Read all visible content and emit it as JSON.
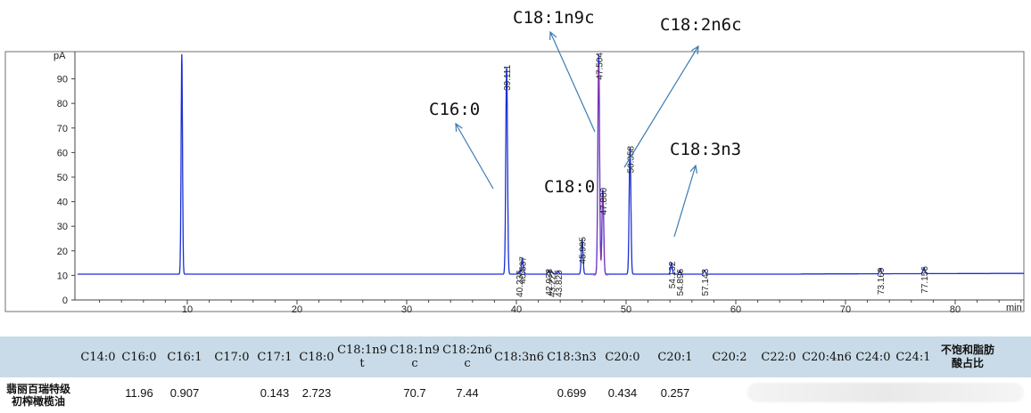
{
  "chart_data": {
    "type": "line",
    "xlabel": "min",
    "ylabel": "pA",
    "xlim": [
      0,
      87
    ],
    "ylim": [
      0,
      100
    ],
    "x_ticks": [
      10,
      20,
      30,
      40,
      50,
      60,
      70,
      80
    ],
    "y_ticks": [
      0,
      10,
      20,
      30,
      40,
      50,
      60,
      70,
      80,
      90
    ],
    "baseline": 10.5,
    "series": [
      {
        "color": "#1a2fd6",
        "peaks": [
          {
            "rt": 9.5,
            "height": 100
          },
          {
            "rt": 39.111,
            "height": 95,
            "label": "39.111"
          },
          {
            "rt": 40.236,
            "height": 11.5,
            "label": "40.236"
          },
          {
            "rt": 40.537,
            "height": 17,
            "label": "40.537"
          },
          {
            "rt": 42.938,
            "height": 12,
            "label": "42.938"
          },
          {
            "rt": 43.222,
            "height": 11.5,
            "label": "43.222"
          },
          {
            "rt": 43.82,
            "height": 11.5,
            "label": "43.820"
          },
          {
            "rt": 45.995,
            "height": 25,
            "label": "45.995"
          },
          {
            "rt": 47.504,
            "height": 100,
            "label": "47.504"
          },
          {
            "rt": 47.88,
            "height": 45,
            "label": "47.880"
          },
          {
            "rt": 50.358,
            "height": 62,
            "label": "50.358"
          },
          {
            "rt": 54.132,
            "height": 15,
            "label": "54.132"
          },
          {
            "rt": 54.896,
            "height": 12,
            "label": "54.896"
          },
          {
            "rt": 57.143,
            "height": 12,
            "label": "57.143"
          },
          {
            "rt": 73.169,
            "height": 12.5,
            "label": "73.169"
          },
          {
            "rt": 77.156,
            "height": 13,
            "label": "77.156"
          }
        ]
      }
    ],
    "annotations": [
      {
        "text": "C16:0",
        "rt": 39.111
      },
      {
        "text": "C18:1n9c",
        "rt": 47.504
      },
      {
        "text": "C18:2n6c",
        "rt": 50.358
      },
      {
        "text": "C18:0",
        "rt": 47.88
      },
      {
        "text": "C18:3n3",
        "rt": 54.132
      }
    ]
  },
  "table": {
    "headers": [
      "C14:0",
      "C16:0",
      "C16:1",
      "C17:0",
      "C17:1",
      "C18:0",
      "C18:1n9\nt",
      "C18:1n9\nc",
      "C18:2n6\nc",
      "C18:3n6",
      "C18:3n3",
      "C20:0",
      "C20:1",
      "C20:2",
      "C22:0",
      "C20:4n6",
      "C24:0",
      "C24:1",
      "不饱和脂肪\n酸占比"
    ],
    "row_label": "翡丽百瑞特级\n初榨橄榄油",
    "values": [
      "",
      "11.96",
      "0.907",
      "",
      "0.143",
      "2.723",
      "",
      "70.7",
      "7.44",
      "",
      "0.699",
      "0.434",
      "0.257",
      "",
      "",
      "",
      "",
      "",
      ""
    ]
  }
}
